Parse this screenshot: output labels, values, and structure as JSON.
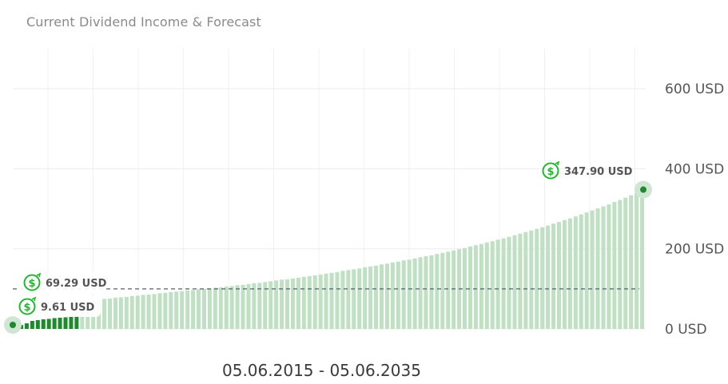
{
  "chart_data": {
    "type": "bar",
    "title": "Current Dividend Income & Forecast",
    "date_range": "05.06.2015 - 05.06.2035",
    "x_start": "05.06.2015",
    "x_end": "05.06.2035",
    "ylim": [
      0,
      700
    ],
    "y_ticks": [
      {
        "value": 0,
        "label": "0 USD"
      },
      {
        "value": 200,
        "label": "200 USD"
      },
      {
        "value": 400,
        "label": "400 USD"
      },
      {
        "value": 600,
        "label": "600 USD"
      }
    ],
    "grid": true,
    "reference_line": {
      "value": 100,
      "style": "dashed"
    },
    "series": [
      {
        "name": "Current",
        "color": "#1e8a2e",
        "values": [
          9.61,
          14,
          20,
          22,
          24,
          25,
          27,
          28,
          29,
          31,
          33
        ]
      },
      {
        "name": "Forecast",
        "color": "#bfe0c3",
        "values": [
          69.29,
          70,
          72,
          73,
          75,
          76,
          78,
          79,
          80,
          82,
          83,
          85,
          86,
          87,
          89,
          90,
          92,
          93,
          94,
          96,
          97,
          99,
          100,
          101,
          103,
          104,
          106,
          107,
          109,
          110,
          112,
          114,
          115,
          117,
          119,
          121,
          123,
          124,
          126,
          128,
          130,
          132,
          134,
          136,
          138,
          140,
          142,
          145,
          147,
          149,
          151,
          154,
          156,
          158,
          161,
          163,
          166,
          168,
          171,
          173,
          176,
          179,
          182,
          184,
          187,
          190,
          193,
          196,
          199,
          202,
          206,
          209,
          212,
          216,
          219,
          223,
          226,
          230,
          234,
          238,
          242,
          246,
          250,
          254,
          258,
          263,
          267,
          272,
          276,
          281,
          286,
          291,
          296,
          301,
          306,
          311,
          317,
          322,
          328,
          334,
          340,
          347.9
        ]
      }
    ],
    "callouts": [
      {
        "label": "347.90 USD",
        "icon": "dollar-refresh-icon",
        "color": "#1fb82e"
      },
      {
        "label": "69.29 USD",
        "icon": "dollar-refresh-icon",
        "color": "#1fb82e"
      },
      {
        "label": "9.61 USD",
        "icon": "dollar-refresh-icon",
        "color": "#1fb82e"
      }
    ]
  }
}
